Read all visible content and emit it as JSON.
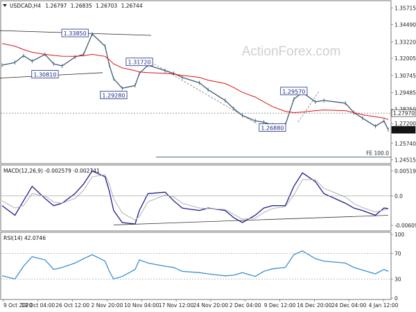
{
  "chart_data": [
    {
      "panel": "price",
      "type": "line",
      "title": "USDCAD,H4",
      "ohlc": {
        "open": "1.26797",
        "high": "1.26835",
        "low": "1.26703",
        "close": "1.26744"
      },
      "watermark": "ActionForex.com",
      "x": [
        "2020-10-09",
        "2020-10-12",
        "2020-10-14",
        "2020-10-16",
        "2020-10-19",
        "2020-10-21",
        "2020-10-23",
        "2020-10-26",
        "2020-10-28",
        "2020-10-30",
        "2020-11-02",
        "2020-11-03",
        "2020-11-04",
        "2020-11-06",
        "2020-11-09",
        "2020-11-10",
        "2020-11-12",
        "2020-11-16",
        "2020-11-18",
        "2020-11-20",
        "2020-11-24",
        "2020-11-26",
        "2020-11-30",
        "2020-12-02",
        "2020-12-04",
        "2020-12-07",
        "2020-12-09",
        "2020-12-11",
        "2020-12-14",
        "2020-12-16",
        "2020-12-18",
        "2020-12-21",
        "2020-12-23",
        "2020-12-28",
        "2020-12-30",
        "2021-01-01",
        "2021-01-04",
        "2021-01-06",
        "2021-01-07"
      ],
      "series": [
        {
          "values": [
            1.315,
            1.317,
            1.322,
            1.318,
            1.323,
            1.316,
            1.3145,
            1.321,
            1.323,
            1.338,
            1.329,
            1.315,
            1.305,
            1.298,
            1.3,
            1.309,
            1.315,
            1.311,
            1.309,
            1.306,
            1.302,
            1.297,
            1.289,
            1.283,
            1.278,
            1.274,
            1.273,
            1.271,
            1.271,
            1.29,
            1.295,
            1.288,
            1.289,
            1.287,
            1.28,
            1.276,
            1.27,
            1.274,
            1.2674
          ],
          "color": "#3d5a73"
        },
        {
          "values": [
            1.331,
            1.329,
            1.3265,
            1.3245,
            1.323,
            1.3222,
            1.3216,
            1.3215,
            1.322,
            1.323,
            1.3215,
            1.319,
            1.316,
            1.313,
            1.311,
            1.31,
            1.3095,
            1.309,
            1.3085,
            1.3075,
            1.306,
            1.304,
            1.3015,
            1.2985,
            1.295,
            1.2915,
            1.288,
            1.2845,
            1.281,
            1.28,
            1.2805,
            1.2815,
            1.282,
            1.2815,
            1.28,
            1.2785,
            1.277,
            1.276,
            1.275
          ],
          "color": "#e01010"
        }
      ],
      "yticks": [
        "1.35715",
        "1.34490",
        "1.33220",
        "1.32005",
        "1.30745",
        "1.29485",
        "1.28250",
        "1.27200",
        "1.25740",
        "1.24515"
      ],
      "ylim": [
        1.244,
        1.361
      ],
      "horizontal_levels": [
        {
          "value": 1.2797,
          "label": "1.27970"
        },
        {
          "value": 1.2674,
          "label": "1.26744"
        }
      ],
      "annotations": [
        {
          "label": "1.33850",
          "x": "2020-10-26",
          "y": 1.3385
        },
        {
          "label": "1.30810",
          "x": "2020-10-19",
          "y": 1.3081
        },
        {
          "label": "1.31720",
          "x": "2020-11-10",
          "y": 1.3172
        },
        {
          "label": "1.29280",
          "x": "2020-11-04",
          "y": 1.2928
        },
        {
          "label": "1.29570",
          "x": "2020-12-16",
          "y": 1.2957
        },
        {
          "label": "1.26880",
          "x": "2020-12-11",
          "y": 1.2688
        }
      ],
      "fe_label": "FE 100.0",
      "fe_value": 1.2473
    },
    {
      "panel": "macd",
      "type": "line",
      "title": "MACD(12,26,9) -0.002579 -0.002741",
      "x": [
        "2020-10-09",
        "2020-10-12",
        "2020-10-14",
        "2020-10-16",
        "2020-10-19",
        "2020-10-21",
        "2020-10-23",
        "2020-10-26",
        "2020-10-28",
        "2020-10-30",
        "2020-11-02",
        "2020-11-03",
        "2020-11-04",
        "2020-11-06",
        "2020-11-09",
        "2020-11-10",
        "2020-11-12",
        "2020-11-16",
        "2020-11-18",
        "2020-11-20",
        "2020-11-24",
        "2020-11-26",
        "2020-11-30",
        "2020-12-02",
        "2020-12-04",
        "2020-12-07",
        "2020-12-09",
        "2020-12-11",
        "2020-12-14",
        "2020-12-16",
        "2020-12-18",
        "2020-12-21",
        "2020-12-23",
        "2020-12-28",
        "2020-12-30",
        "2021-01-01",
        "2021-01-04",
        "2021-01-06",
        "2021-01-07"
      ],
      "series": [
        {
          "values": [
            -0.002,
            -0.004,
            -0.001,
            0.002,
            -0.0005,
            -0.002,
            -0.0015,
            0.0005,
            0.0025,
            0.0052,
            0.004,
            0.001,
            -0.003,
            -0.0055,
            -0.0058,
            -0.003,
            0.0005,
            0.0008,
            -0.001,
            -0.0025,
            -0.003,
            -0.0025,
            -0.003,
            -0.0045,
            -0.0055,
            -0.004,
            -0.0025,
            -0.002,
            -0.002,
            0.002,
            0.0048,
            0.003,
            0.0005,
            -0.0015,
            -0.0025,
            -0.003,
            -0.004,
            -0.0025,
            -0.0026
          ],
          "color": "#1a1a8c"
        },
        {
          "values": [
            -0.001,
            -0.0025,
            -0.002,
            0.0005,
            0.0,
            -0.0012,
            -0.0015,
            -0.0005,
            0.0012,
            0.004,
            0.0044,
            0.0025,
            -0.0005,
            -0.0035,
            -0.005,
            -0.0042,
            -0.0012,
            0.0002,
            -0.0002,
            -0.0015,
            -0.0025,
            -0.0026,
            -0.0028,
            -0.0038,
            -0.0048,
            -0.0046,
            -0.0034,
            -0.0026,
            -0.0022,
            0.0002,
            0.0034,
            0.0034,
            0.0016,
            -0.0002,
            -0.0016,
            -0.0024,
            -0.0033,
            -0.0029,
            -0.0027
          ],
          "color": "#b0b0b0"
        }
      ],
      "yticks": [
        "0.005195",
        "0.0",
        "-0.006093"
      ],
      "ylim": [
        -0.0068,
        0.006
      ],
      "trendline": {
        "x1": "2020-11-04",
        "y1": -0.006,
        "x2": "2021-01-07",
        "y2": -0.004
      }
    },
    {
      "panel": "rsi",
      "type": "line",
      "title": "RSI(14) 42.0746",
      "x": [
        "2020-10-09",
        "2020-10-12",
        "2020-10-14",
        "2020-10-16",
        "2020-10-19",
        "2020-10-21",
        "2020-10-23",
        "2020-10-26",
        "2020-10-28",
        "2020-10-30",
        "2020-11-02",
        "2020-11-03",
        "2020-11-04",
        "2020-11-06",
        "2020-11-09",
        "2020-11-10",
        "2020-11-12",
        "2020-11-16",
        "2020-11-18",
        "2020-11-20",
        "2020-11-24",
        "2020-11-26",
        "2020-11-30",
        "2020-12-02",
        "2020-12-04",
        "2020-12-07",
        "2020-12-09",
        "2020-12-11",
        "2020-12-14",
        "2020-12-16",
        "2020-12-18",
        "2020-12-21",
        "2020-12-23",
        "2020-12-28",
        "2020-12-30",
        "2021-01-01",
        "2021-01-04",
        "2021-01-06",
        "2021-01-07"
      ],
      "series": [
        {
          "values": [
            35,
            30,
            50,
            65,
            60,
            45,
            48,
            55,
            62,
            68,
            58,
            42,
            30,
            34,
            45,
            60,
            55,
            50,
            48,
            42,
            40,
            38,
            35,
            36,
            40,
            34,
            42,
            46,
            48,
            68,
            74,
            62,
            58,
            55,
            48,
            44,
            38,
            45,
            42
          ],
          "color": "#3a8fd0"
        }
      ],
      "yticks": [
        "100",
        "70",
        "30",
        "0"
      ],
      "ylim": [
        0,
        100
      ],
      "levels": [
        70,
        30
      ]
    }
  ],
  "x_axis_labels": [
    "9 Oct 2020",
    "19 Oct 04:00",
    "26 Oct 12:00",
    "2 Nov 20:00",
    "10 Nov 04:00",
    "17 Nov 12:00",
    "24 Nov 20:00",
    "2 Dec 04:00",
    "9 Dec 12:00",
    "16 Dec 20:00",
    "24 Dec 04:00",
    "4 Jan 12:00"
  ]
}
